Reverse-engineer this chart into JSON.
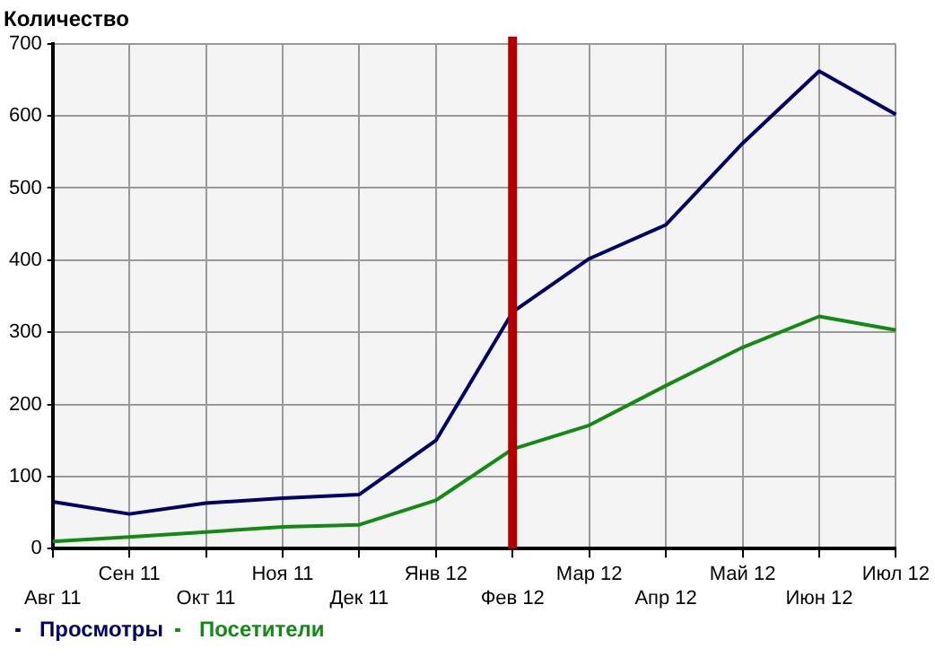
{
  "chart_data": {
    "type": "line",
    "title": "Количество",
    "categories": [
      "Авг 11",
      "Сен 11",
      "Окт 11",
      "Ноя 11",
      "Дек 11",
      "Янв 12",
      "Фев 12",
      "Мар 12",
      "Апр 12",
      "Май 12",
      "Июн 12",
      "Июл 12"
    ],
    "series": [
      {
        "name": "Просмотры",
        "color": "#000066",
        "values": [
          65,
          48,
          63,
          70,
          75,
          150,
          328,
          402,
          449,
          562,
          662,
          602
        ]
      },
      {
        "name": "Посетители",
        "color": "#138a13",
        "values": [
          10,
          16,
          23,
          30,
          33,
          67,
          138,
          171,
          226,
          279,
          322,
          303
        ]
      }
    ],
    "ylim": [
      0,
      700
    ],
    "yticks": [
      0,
      100,
      200,
      300,
      400,
      500,
      600,
      700
    ],
    "ref_lines": [
      {
        "axis": "x",
        "value": "Фев 12",
        "color": "#b00000"
      }
    ],
    "grid": true,
    "legend": "bottom left",
    "marker": "none",
    "line_style": "solid"
  }
}
